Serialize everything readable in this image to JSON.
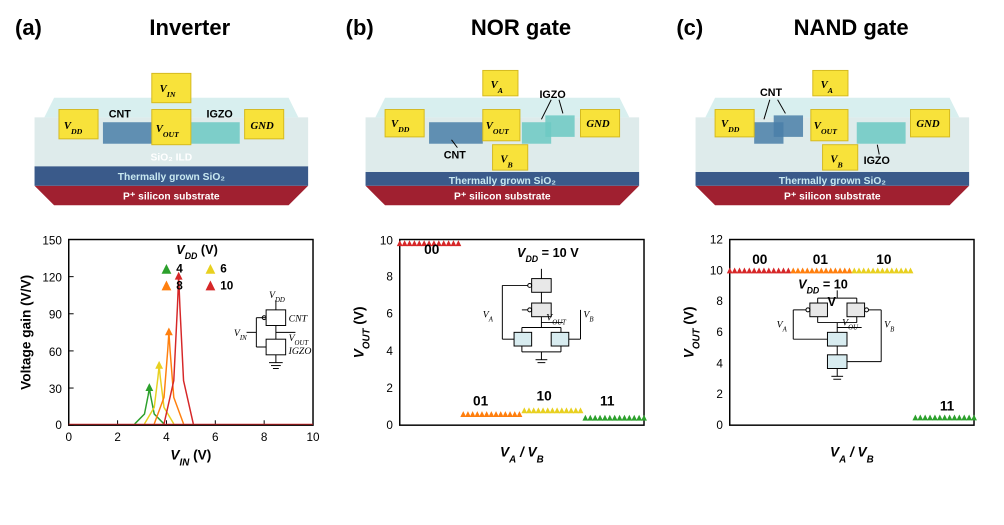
{
  "panels": {
    "a": {
      "label": "(a)",
      "title": "Inverter"
    },
    "b": {
      "label": "(b)",
      "title": "NOR gate"
    },
    "c": {
      "label": "(c)",
      "title": "NAND gate"
    }
  },
  "device_colors": {
    "contact_pad": "#f8e23a",
    "contact_pad_shade": "#d4b920",
    "cnt_region": "#4a7fa8",
    "igzo_region": "#6cc9c3",
    "ild_layer": "#d8e8e8",
    "sio2_layer": "#3a5a8a",
    "sio2_layer_label": "#c8e8f0",
    "substrate": "#a02030",
    "substrate_label": "#ffffff"
  },
  "device_layers": {
    "ild": "SiO₂ ILD",
    "sio2": "Thermally grown SiO₂",
    "substrate": "P⁺ silicon substrate"
  },
  "terminal_labels": {
    "vin": "V_IN",
    "vout": "V_OUT",
    "vdd": "V_DD",
    "gnd": "GND",
    "va": "V_A",
    "vb": "V_B",
    "cnt": "CNT",
    "igzo": "IGZO"
  },
  "chart_a": {
    "type": "line-peak",
    "xlabel": "V_IN (V)",
    "ylabel": "Voltage gain (V/V)",
    "xlim": [
      0,
      10
    ],
    "ylim": [
      0,
      150
    ],
    "xticks": [
      0,
      2,
      4,
      6,
      8,
      10
    ],
    "yticks": [
      0,
      30,
      60,
      90,
      120,
      150
    ],
    "legend_title": "V_DD (V)",
    "series": [
      {
        "label": "4",
        "color": "#2ca02c",
        "peak_x": 3.3,
        "peak_y": 30
      },
      {
        "label": "6",
        "color": "#e8d020",
        "peak_x": 3.7,
        "peak_y": 48
      },
      {
        "label": "8",
        "color": "#ff7f0e",
        "peak_x": 4.1,
        "peak_y": 75
      },
      {
        "label": "10",
        "color": "#d62728",
        "peak_x": 4.5,
        "peak_y": 120
      }
    ],
    "background_color": "#ffffff",
    "axis_color": "#000000",
    "circuit_labels": [
      "V_DD",
      "V_IN",
      "CNT",
      "V_OUT",
      "IGZO"
    ]
  },
  "chart_b": {
    "type": "logic-levels",
    "xlabel": "V_A / V_B",
    "ylabel": "V_OUT (V)",
    "ylim": [
      0,
      10
    ],
    "yticks": [
      0,
      2,
      4,
      6,
      8,
      10
    ],
    "annotation": "V_DD = 10 V",
    "states": [
      {
        "label": "00",
        "color": "#d62728",
        "xstart": 0,
        "xend": 0.24,
        "y": 9.8
      },
      {
        "label": "01",
        "color": "#ff7f0e",
        "xstart": 0.26,
        "xend": 0.49,
        "y": 0.6
      },
      {
        "label": "10",
        "color": "#e8d020",
        "xstart": 0.51,
        "xend": 0.74,
        "y": 0.8
      },
      {
        "label": "11",
        "color": "#2ca02c",
        "xstart": 0.76,
        "xend": 1.0,
        "y": 0.4
      }
    ],
    "circuit_labels": [
      "V_A",
      "V_OUT",
      "V_B"
    ]
  },
  "chart_c": {
    "type": "logic-levels",
    "xlabel": "V_A / V_B",
    "ylabel": "V_OUT (V)",
    "ylim": [
      0,
      12
    ],
    "yticks": [
      0,
      2,
      4,
      6,
      8,
      10,
      12
    ],
    "annotation": "V_DD = 10",
    "ann2": "V",
    "states": [
      {
        "label": "00",
        "color": "#d62728",
        "xstart": 0,
        "xend": 0.24,
        "y": 10
      },
      {
        "label": "01",
        "color": "#ff7f0e",
        "xstart": 0.26,
        "xend": 0.49,
        "y": 10
      },
      {
        "label": "10",
        "color": "#e8d020",
        "xstart": 0.51,
        "xend": 0.74,
        "y": 10
      },
      {
        "label": "11",
        "color": "#2ca02c",
        "xstart": 0.76,
        "xend": 1.0,
        "y": 0.5
      }
    ],
    "circuit_labels": [
      "V_A",
      "V_OU",
      "V_B"
    ]
  }
}
